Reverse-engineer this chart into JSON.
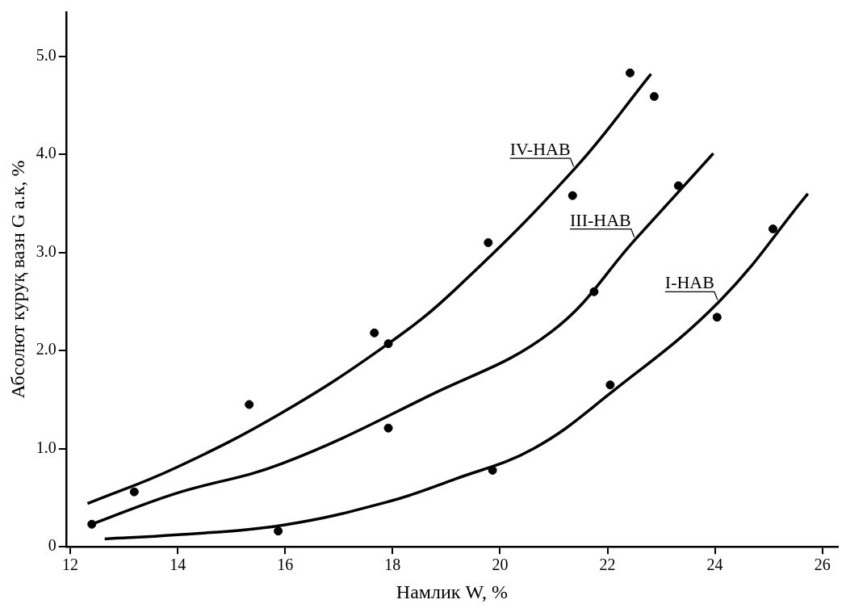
{
  "chart_data": {
    "type": "scatter",
    "xlabel": "Намлик W, %",
    "ylabel": "Абсолют куруқ вазн G а.к, %",
    "xlim": [
      11.92,
      26.29
    ],
    "ylim": [
      0,
      5.45
    ],
    "xticks": [
      12,
      14,
      16,
      18,
      20,
      22,
      24,
      26
    ],
    "yticks": [
      0,
      {
        "value": 1,
        "label": "1.0"
      },
      {
        "value": 2,
        "label": "2.0"
      },
      {
        "value": 3,
        "label": "3.0"
      },
      {
        "value": 4,
        "label": "4.0"
      },
      {
        "value": 5,
        "label": "5.0"
      }
    ],
    "grid": false,
    "legend": false,
    "marker": "circle",
    "series": [
      {
        "color": "#000000",
        "x": [
          12.4,
          13.19,
          15.33,
          15.87,
          17.66,
          17.92,
          17.92,
          19.78,
          19.86,
          21.35,
          21.75,
          22.05,
          22.42,
          22.87,
          23.32,
          24.04,
          25.08
        ],
        "values": [
          0.23,
          0.56,
          1.45,
          0.16,
          2.18,
          2.07,
          1.21,
          3.1,
          0.78,
          3.58,
          2.6,
          1.65,
          4.83,
          4.59,
          3.68,
          2.34,
          3.24
        ]
      },
      {
        "type": "line",
        "marker": "none",
        "name": "IV-НАВ",
        "color": "#000000",
        "x": [
          12.32,
          13.94,
          15.95,
          17.92,
          19.16,
          21.4,
          22.81
        ],
        "values": [
          0.44,
          0.8,
          1.37,
          2.07,
          2.62,
          3.86,
          4.82
        ]
      },
      {
        "type": "line",
        "marker": "none",
        "name": "III-НАВ",
        "color": "#000000",
        "x": [
          12.4,
          13.94,
          15.95,
          18.68,
          20.95,
          22.53,
          23.97
        ],
        "values": [
          0.23,
          0.54,
          0.85,
          1.54,
          2.19,
          3.14,
          4.01
        ]
      },
      {
        "type": "line",
        "marker": "none",
        "name": "I-НАВ",
        "color": "#000000",
        "x": [
          12.64,
          13.94,
          15.95,
          17.92,
          19.16,
          20.62,
          22.04,
          24.08,
          25.73
        ],
        "values": [
          0.08,
          0.12,
          0.22,
          0.46,
          0.69,
          1.0,
          1.56,
          2.5,
          3.6
        ]
      }
    ]
  }
}
